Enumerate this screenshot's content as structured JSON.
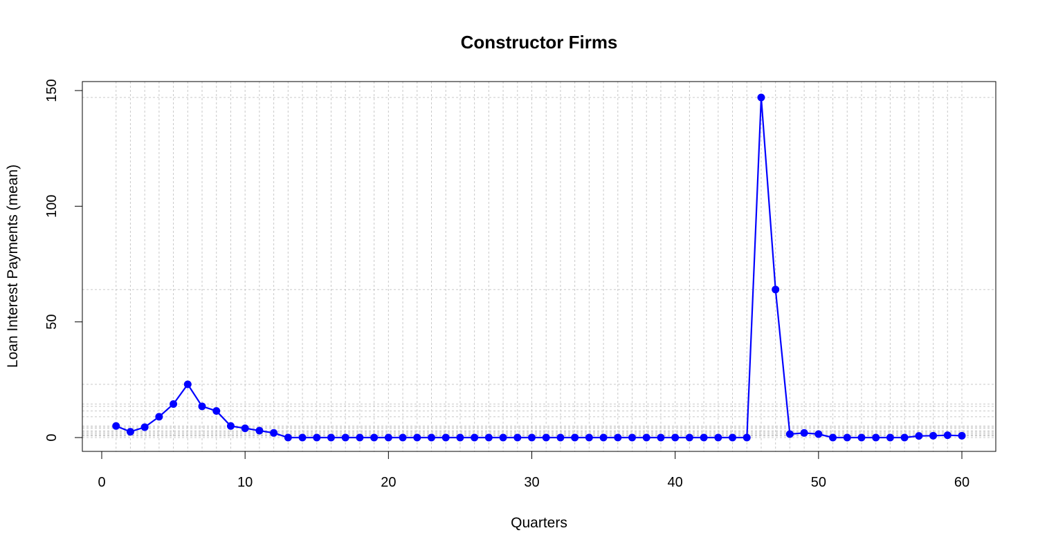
{
  "chart_data": {
    "type": "line",
    "title": "Constructor Firms",
    "xlabel": "Quarters",
    "ylabel": "Loan Interest Payments (mean)",
    "xlim": [
      0,
      60
    ],
    "ylim": [
      0,
      150
    ],
    "x_ticks": [
      0,
      10,
      20,
      30,
      40,
      50,
      60
    ],
    "y_ticks": [
      0,
      50,
      100,
      150
    ],
    "grid": true,
    "line_color": "#0000ff",
    "grid_color": "#c8c8c8",
    "series": [
      {
        "x": [
          1,
          2,
          3,
          4,
          5,
          6,
          7,
          8,
          9,
          10,
          11,
          12,
          13,
          14,
          15,
          16,
          17,
          18,
          19,
          20,
          21,
          22,
          23,
          24,
          25,
          26,
          27,
          28,
          29,
          30,
          31,
          32,
          33,
          34,
          35,
          36,
          37,
          38,
          39,
          40,
          41,
          42,
          43,
          44,
          45,
          46,
          47,
          48,
          49,
          50,
          51,
          52,
          53,
          54,
          55,
          56,
          57,
          58,
          59,
          60
        ],
        "values": [
          5.0,
          2.5,
          4.5,
          9.0,
          14.5,
          23.0,
          13.5,
          11.5,
          5.0,
          4.0,
          3.0,
          2.0,
          0,
          0,
          0,
          0,
          0,
          0,
          0,
          0,
          0,
          0,
          0,
          0,
          0,
          0,
          0,
          0,
          0,
          0,
          0,
          0,
          0,
          0,
          0,
          0,
          0,
          0,
          0,
          0,
          0,
          0,
          0,
          0,
          0,
          147.0,
          64.0,
          1.5,
          2.0,
          1.5,
          0,
          0,
          0,
          0,
          0,
          0,
          0.7,
          0.8,
          1.0,
          0.8
        ]
      }
    ]
  }
}
